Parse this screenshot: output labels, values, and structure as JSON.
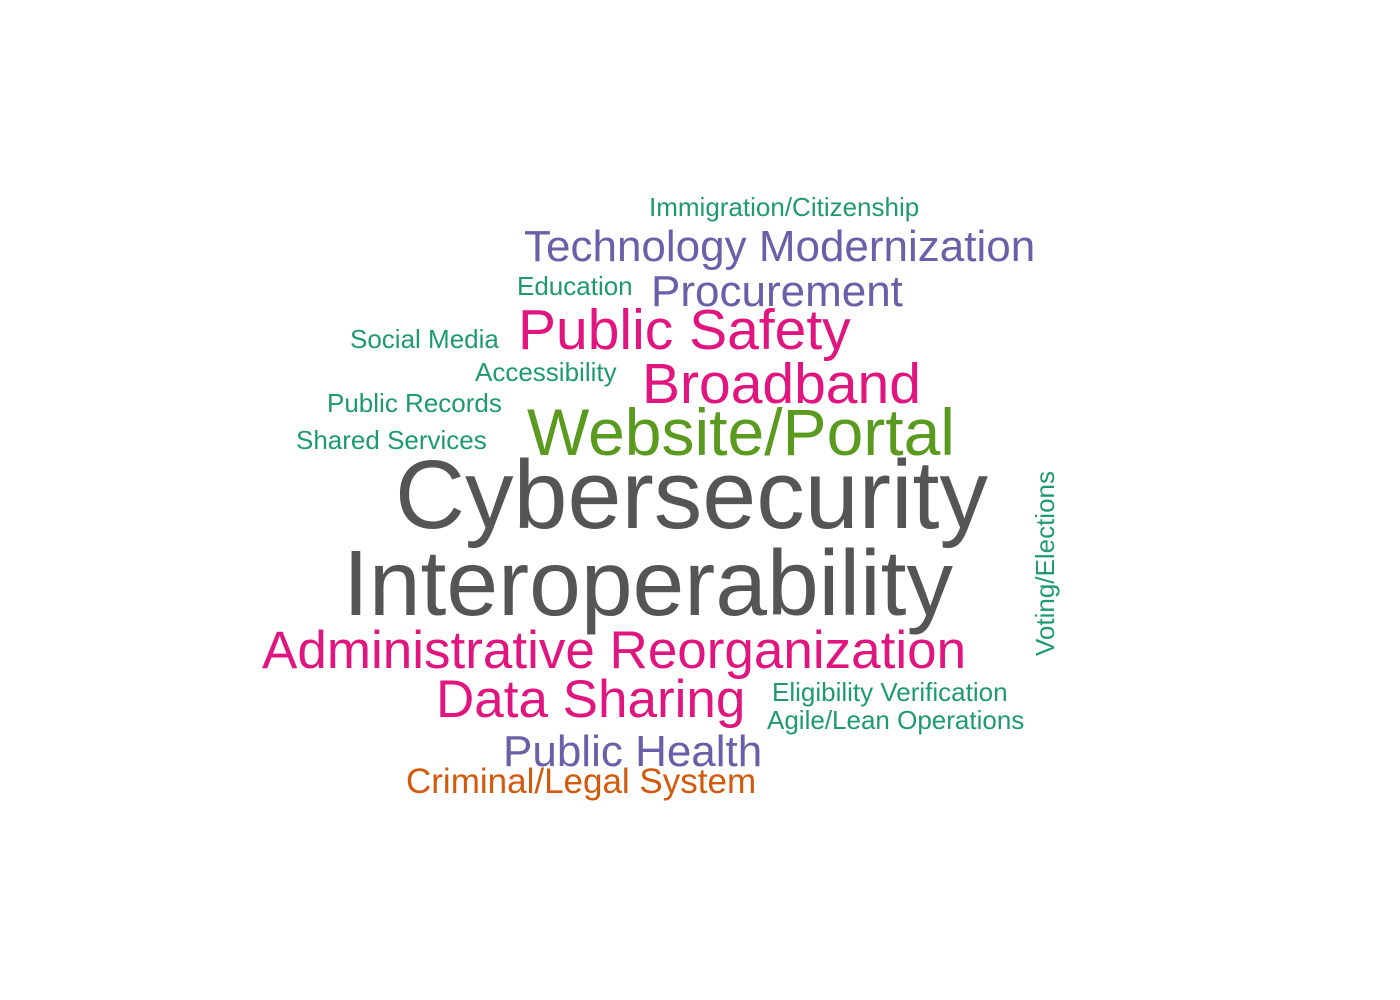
{
  "palette": {
    "gray": "#555555",
    "magenta": "#e0157f",
    "purple": "#6a5fa8",
    "olive_green": "#5a9a1f",
    "teal": "#1f9a70",
    "orange": "#d35a0c"
  },
  "words": [
    {
      "text": "Cybersecurity",
      "color": "#555555",
      "weight_rank": 1
    },
    {
      "text": "Interoperability",
      "color": "#555555",
      "weight_rank": 2
    },
    {
      "text": "Website/Portal",
      "color": "#5a9a1f",
      "weight_rank": 3
    },
    {
      "text": "Administrative Reorganization",
      "color": "#e0157f",
      "weight_rank": 4
    },
    {
      "text": "Public Safety",
      "color": "#e0157f",
      "weight_rank": 4
    },
    {
      "text": "Broadband",
      "color": "#e0157f",
      "weight_rank": 4
    },
    {
      "text": "Data Sharing",
      "color": "#e0157f",
      "weight_rank": 4
    },
    {
      "text": "Technology Modernization",
      "color": "#6a5fa8",
      "weight_rank": 5
    },
    {
      "text": "Procurement",
      "color": "#6a5fa8",
      "weight_rank": 5
    },
    {
      "text": "Public Health",
      "color": "#6a5fa8",
      "weight_rank": 5
    },
    {
      "text": "Criminal/Legal System",
      "color": "#d35a0c",
      "weight_rank": 6
    },
    {
      "text": "Immigration/Citizenship",
      "color": "#1f9a70",
      "weight_rank": 7
    },
    {
      "text": "Education",
      "color": "#1f9a70",
      "weight_rank": 7
    },
    {
      "text": "Social Media",
      "color": "#1f9a70",
      "weight_rank": 7
    },
    {
      "text": "Accessibility",
      "color": "#1f9a70",
      "weight_rank": 7
    },
    {
      "text": "Public Records",
      "color": "#1f9a70",
      "weight_rank": 7
    },
    {
      "text": "Shared Services",
      "color": "#1f9a70",
      "weight_rank": 7
    },
    {
      "text": "Eligibility Verification",
      "color": "#1f9a70",
      "weight_rank": 7
    },
    {
      "text": "Agile/Lean Operations",
      "color": "#1f9a70",
      "weight_rank": 7
    },
    {
      "text": "Voting/Elections",
      "color": "#1f9a70",
      "weight_rank": 7,
      "orientation": "vertical"
    }
  ]
}
